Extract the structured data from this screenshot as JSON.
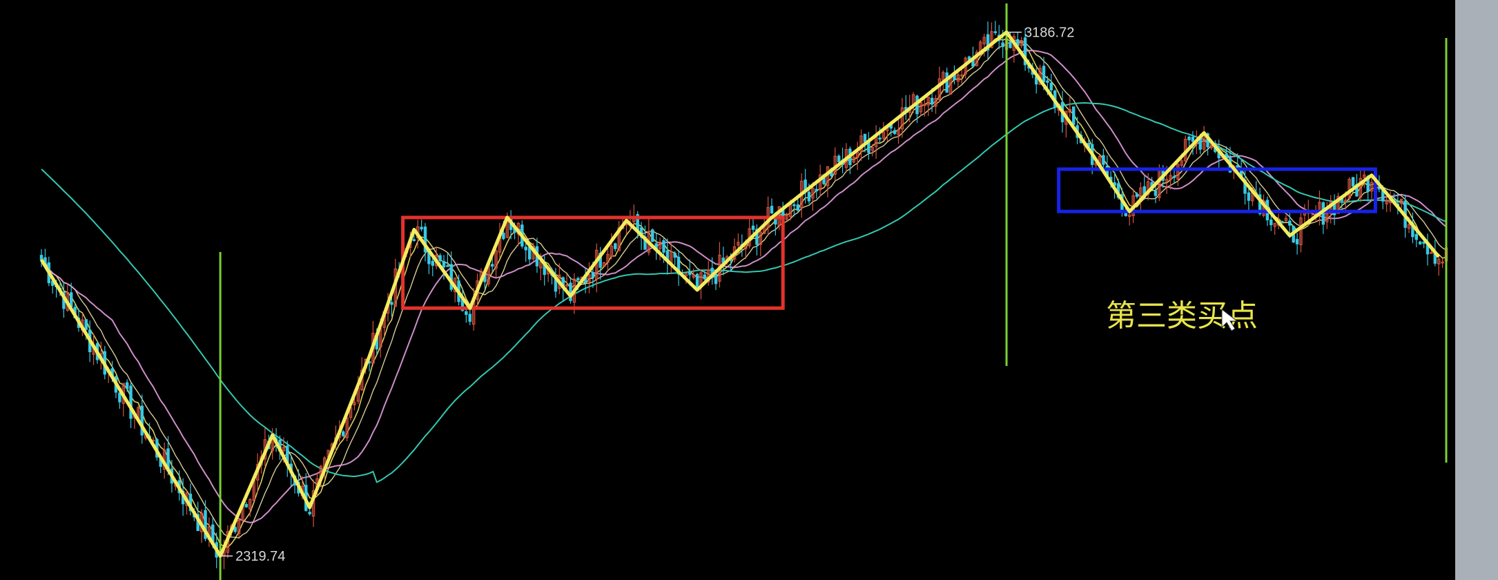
{
  "chart_data": {
    "type": "candlestick",
    "title": "",
    "xlabel": "",
    "ylabel": "",
    "ylim": [
      2280,
      3240
    ],
    "grid": false,
    "labels": {
      "high_label": "3186.72",
      "low_label": "2319.74",
      "annotation": "第三类买点"
    },
    "colors": {
      "background": "#000000",
      "up_candle": "#d9533f",
      "down_candle": "#37c9e4",
      "zigzag": "#f2ec5e",
      "ma_short": "#f2e66b",
      "ma_mid": "#e59ee0",
      "ma_long": "#34c9b3",
      "pivot_box_1": "#e3322b",
      "pivot_box_2": "#1722e6",
      "vertical_markers": "#79d133"
    },
    "zigzag_points": [
      {
        "x": 0,
        "y": 2810
      },
      {
        "x": 48,
        "y": 2319.74
      },
      {
        "x": 62,
        "y": 2520
      },
      {
        "x": 72,
        "y": 2400
      },
      {
        "x": 88,
        "y": 2650
      },
      {
        "x": 100,
        "y": 2860
      },
      {
        "x": 115,
        "y": 2730
      },
      {
        "x": 125,
        "y": 2880
      },
      {
        "x": 142,
        "y": 2750
      },
      {
        "x": 157,
        "y": 2875
      },
      {
        "x": 176,
        "y": 2760
      },
      {
        "x": 196,
        "y": 2880
      },
      {
        "x": 259,
        "y": 3186.72
      },
      {
        "x": 282,
        "y": 2985
      },
      {
        "x": 292,
        "y": 2890
      },
      {
        "x": 312,
        "y": 3020
      },
      {
        "x": 335,
        "y": 2850
      },
      {
        "x": 357,
        "y": 2950
      },
      {
        "x": 375,
        "y": 2815
      }
    ],
    "pivot_boxes": [
      {
        "x0": 97,
        "x1": 199,
        "y_low": 2730,
        "y_high": 2880
      },
      {
        "x0": 273,
        "x1": 358,
        "y_low": 2890,
        "y_high": 2960
      }
    ],
    "vertical_markers_x": [
      48,
      259,
      377
    ],
    "text_annotation_point": {
      "x": 289,
      "y": 2860
    }
  }
}
